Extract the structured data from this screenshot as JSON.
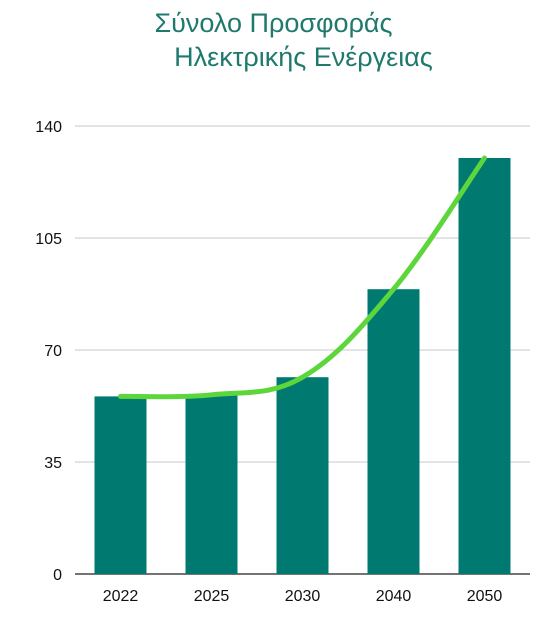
{
  "chart_data": {
    "type": "bar",
    "title_lines": [
      "Σύνολο Προσφοράς",
      "Ηλεκτρικής Ενέργειας"
    ],
    "categories": [
      "2022",
      "2025",
      "2030",
      "2040",
      "2050"
    ],
    "series": [
      {
        "type": "bar",
        "values": [
          55.5,
          56,
          61.5,
          89,
          130
        ]
      },
      {
        "type": "line",
        "values": [
          55.5,
          56,
          61.5,
          89,
          130
        ]
      }
    ],
    "ylim": [
      0,
      140
    ],
    "yticks": [
      0,
      35,
      70,
      105,
      140
    ],
    "grid": true,
    "legend": "none",
    "colors": {
      "bar": "#007a70",
      "line": "#5dd63c",
      "title": "#1f7a6d",
      "grid": "#c8c8c8"
    }
  }
}
